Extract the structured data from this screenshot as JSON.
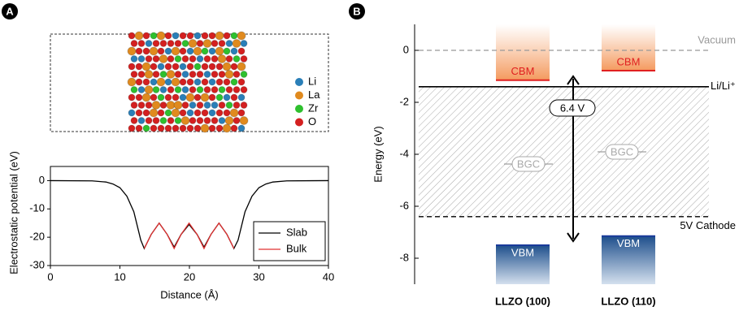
{
  "chart_data": [
    {
      "type": "line",
      "panel_label": "A",
      "xlabel": "Distance (Å)",
      "ylabel": "Electrostatic potential (eV)",
      "xlim": [
        0,
        40
      ],
      "ylim": [
        -30,
        5
      ],
      "xticks": [
        0,
        10,
        20,
        30,
        40
      ],
      "yticks": [
        -30,
        -20,
        -10,
        0
      ],
      "legend": "lower right",
      "series": [
        {
          "name": "Slab",
          "color": "#000000",
          "x": [
            0,
            6,
            8,
            9,
            10,
            11,
            12,
            12.5,
            13,
            13.5,
            14.5,
            15.65,
            16.8,
            17.8,
            18.8,
            19.95,
            21.1,
            22.1,
            23.1,
            24.25,
            25.4,
            26.4,
            27,
            27.5,
            28,
            29,
            30,
            31,
            32,
            34,
            40
          ],
          "values": [
            0,
            -0.1,
            -0.5,
            -1.2,
            -2.5,
            -5.5,
            -11,
            -16,
            -21,
            -24,
            -19,
            -15,
            -19,
            -23.5,
            -19,
            -15.5,
            -19,
            -23.5,
            -19,
            -15,
            -19,
            -24,
            -21,
            -16,
            -11,
            -5.5,
            -2.5,
            -1.2,
            -0.5,
            -0.1,
            0
          ]
        },
        {
          "name": "Bulk",
          "color": "#e03030",
          "x": [
            13.5,
            14.5,
            15.65,
            16.8,
            17.8,
            18.8,
            19.95,
            21.1,
            22.1,
            23.1,
            24.25,
            25.4,
            26.4
          ],
          "values": [
            -24,
            -19,
            -15,
            -19,
            -24,
            -19,
            -15,
            -19,
            -24,
            -19,
            -15,
            -19,
            -24
          ]
        }
      ],
      "structure_legend": [
        {
          "name": "Li",
          "color": "#2a7fb8"
        },
        {
          "name": "La",
          "color": "#e08a1e"
        },
        {
          "name": "Zr",
          "color": "#2ec02e"
        },
        {
          "name": "O",
          "color": "#d42020"
        }
      ]
    },
    {
      "type": "band-diagram",
      "panel_label": "B",
      "ylabel": "Energy (eV)",
      "ylim": [
        -9,
        1
      ],
      "yticks": [
        -8,
        -6,
        -4,
        -2,
        0
      ],
      "categories": [
        "LLZO (100)",
        "LLZO (110)"
      ],
      "cbm": {
        "label": "CBM",
        "color": "#e02020",
        "values": [
          -1.15,
          -0.78
        ]
      },
      "vbm": {
        "label": "VBM",
        "color": "#1a3a9a",
        "values": [
          -7.5,
          -7.15
        ]
      },
      "levels": [
        {
          "name": "Vacuum",
          "value": 0,
          "color": "#999999",
          "dashed": true
        },
        {
          "name": "Li/Li⁺",
          "value": -1.4,
          "color": "#000000",
          "dashed": false
        },
        {
          "name": "5V Cathode",
          "value": -6.4,
          "color": "#000000",
          "dashed": true
        }
      ],
      "gap_label": "6.4 V",
      "region_label": "BGC"
    }
  ]
}
